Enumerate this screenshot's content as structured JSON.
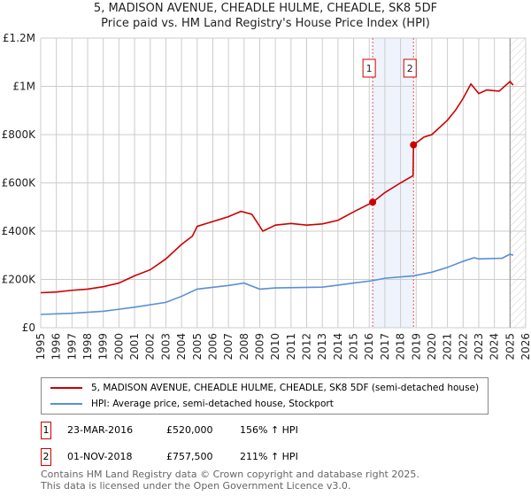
{
  "chart_data": {
    "type": "line",
    "title": "5, MADISON AVENUE, CHEADLE HULME, CHEADLE, SK8 5DF",
    "subtitle": "Price paid vs. HM Land Registry's House Price Index (HPI)",
    "xlim": [
      1995,
      2026
    ],
    "ylim": [
      0,
      1200000
    ],
    "x_ticks": [
      "1995",
      "1996",
      "1997",
      "1998",
      "1999",
      "2000",
      "2001",
      "2002",
      "2003",
      "2004",
      "2005",
      "2006",
      "2007",
      "2008",
      "2009",
      "2010",
      "2011",
      "2012",
      "2013",
      "2014",
      "2015",
      "2016",
      "2017",
      "2018",
      "2019",
      "2020",
      "2021",
      "2022",
      "2023",
      "2024",
      "2025",
      "2026"
    ],
    "y_ticks": [
      {
        "v": 0,
        "label": "£0"
      },
      {
        "v": 200000,
        "label": "£200K"
      },
      {
        "v": 400000,
        "label": "£400K"
      },
      {
        "v": 600000,
        "label": "£600K"
      },
      {
        "v": 800000,
        "label": "£800K"
      },
      {
        "v": 1000000,
        "label": "£1M"
      },
      {
        "v": 1200000,
        "label": "£1.2M"
      }
    ],
    "grid": true,
    "series": [
      {
        "name": "5, MADISON AVENUE, CHEADLE HULME, CHEADLE, SK8 5DF (semi-detached house)",
        "color": "#cc0000",
        "points": [
          [
            1995,
            145000
          ],
          [
            1996,
            148000
          ],
          [
            1997,
            155000
          ],
          [
            1998,
            160000
          ],
          [
            1999,
            170000
          ],
          [
            2000,
            185000
          ],
          [
            2001,
            215000
          ],
          [
            2002,
            240000
          ],
          [
            2003,
            285000
          ],
          [
            2004,
            345000
          ],
          [
            2004.7,
            380000
          ],
          [
            2005,
            420000
          ],
          [
            2006,
            440000
          ],
          [
            2007,
            460000
          ],
          [
            2007.8,
            482000
          ],
          [
            2008.5,
            470000
          ],
          [
            2009.2,
            400000
          ],
          [
            2010,
            425000
          ],
          [
            2011,
            432000
          ],
          [
            2012,
            425000
          ],
          [
            2013,
            430000
          ],
          [
            2014,
            445000
          ],
          [
            2015,
            480000
          ],
          [
            2016.22,
            520000
          ],
          [
            2017,
            560000
          ],
          [
            2018,
            600000
          ],
          [
            2018.8,
            630000
          ],
          [
            2018.83,
            757500
          ],
          [
            2019.5,
            790000
          ],
          [
            2020,
            800000
          ],
          [
            2021,
            860000
          ],
          [
            2021.5,
            900000
          ],
          [
            2022,
            950000
          ],
          [
            2022.5,
            1010000
          ],
          [
            2023,
            970000
          ],
          [
            2023.5,
            985000
          ],
          [
            2024.3,
            980000
          ],
          [
            2025,
            1020000
          ],
          [
            2025.2,
            1005000
          ]
        ]
      },
      {
        "name": "HPI: Average price, semi-detached house, Stockport",
        "color": "#5b8fd4",
        "points": [
          [
            1995,
            55000
          ],
          [
            1997,
            60000
          ],
          [
            1999,
            68000
          ],
          [
            2001,
            85000
          ],
          [
            2003,
            105000
          ],
          [
            2004,
            130000
          ],
          [
            2005,
            160000
          ],
          [
            2007,
            175000
          ],
          [
            2008,
            185000
          ],
          [
            2009,
            160000
          ],
          [
            2010,
            165000
          ],
          [
            2013,
            168000
          ],
          [
            2015,
            185000
          ],
          [
            2016.22,
            195000
          ],
          [
            2017,
            205000
          ],
          [
            2018.83,
            215000
          ],
          [
            2020,
            230000
          ],
          [
            2021,
            250000
          ],
          [
            2022,
            275000
          ],
          [
            2022.7,
            290000
          ],
          [
            2023,
            285000
          ],
          [
            2024.5,
            288000
          ],
          [
            2025,
            305000
          ],
          [
            2025.2,
            300000
          ]
        ]
      }
    ],
    "sales": [
      {
        "id": "1",
        "x": 2016.22,
        "price": 520000
      },
      {
        "id": "2",
        "x": 2018.83,
        "price": 757500
      }
    ],
    "future_from": 2025.0
  },
  "legend": {
    "price": "5, MADISON AVENUE, CHEADLE HULME, CHEADLE, SK8 5DF (semi-detached house)",
    "hpi": "HPI: Average price, semi-detached house, Stockport"
  },
  "transactions": [
    {
      "id": "1",
      "date": "23-MAR-2016",
      "price": "£520,000",
      "hpi": "156% ↑ HPI"
    },
    {
      "id": "2",
      "date": "01-NOV-2018",
      "price": "£757,500",
      "hpi": "211% ↑ HPI"
    }
  ],
  "footer": {
    "line1": "Contains HM Land Registry data © Crown copyright and database right 2025.",
    "line2": "This data is licensed under the Open Government Licence v3.0."
  }
}
